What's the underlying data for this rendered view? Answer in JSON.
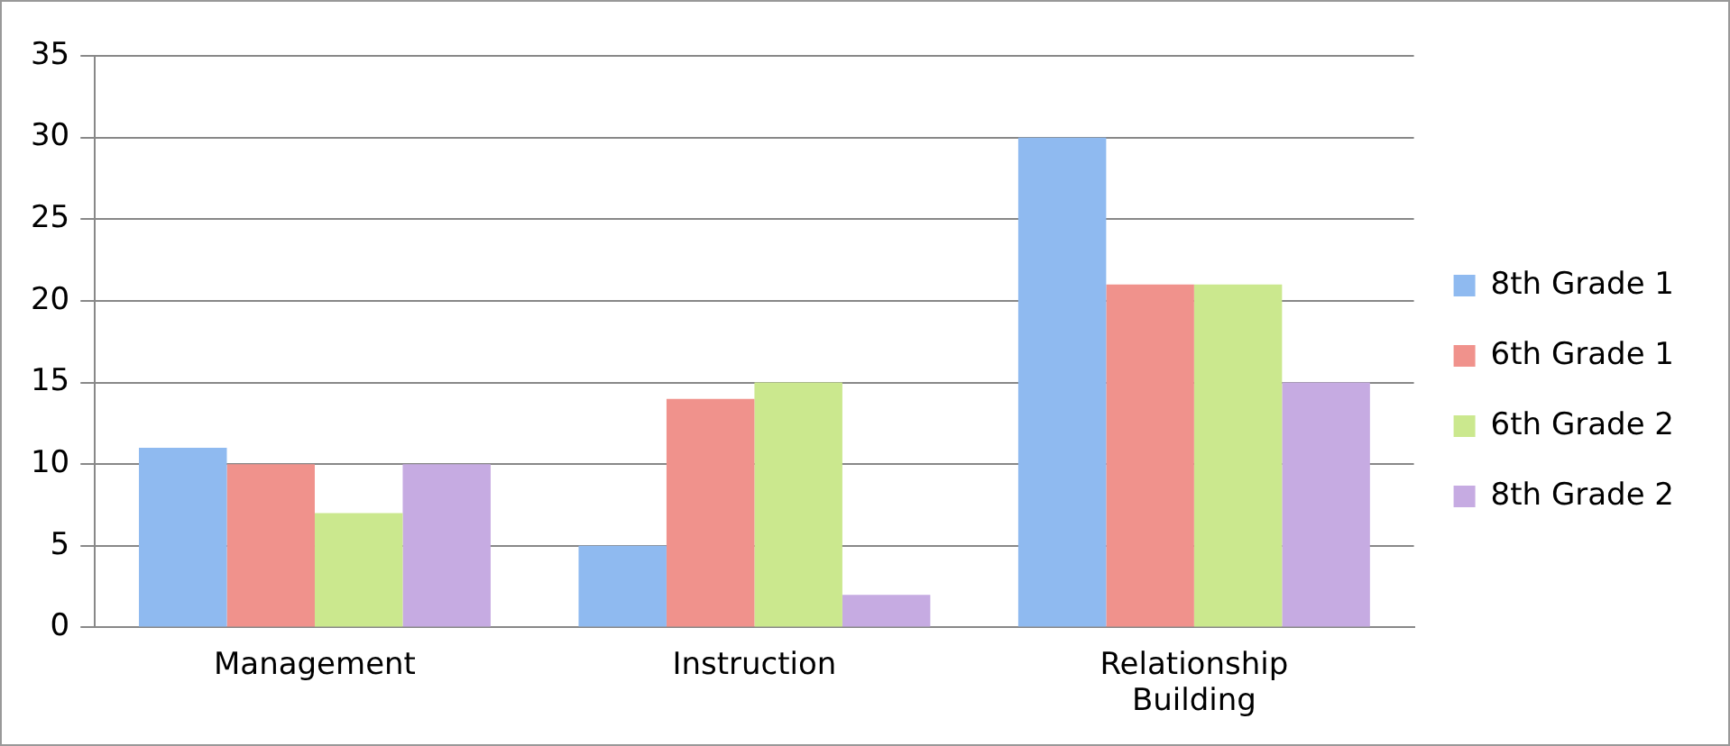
{
  "chart_data": {
    "type": "bar",
    "categories": [
      "Management",
      "Instruction",
      "Relationship Building"
    ],
    "series": [
      {
        "name": "8th Grade 1",
        "color": "#8fbaf0",
        "values": [
          11,
          5,
          30
        ]
      },
      {
        "name": "6th Grade 1",
        "color": "#f0928c",
        "values": [
          10,
          14,
          21
        ]
      },
      {
        "name": "6th Grade 2",
        "color": "#cbe88e",
        "values": [
          7,
          15,
          21
        ]
      },
      {
        "name": "8th Grade 2",
        "color": "#c6abe2",
        "values": [
          10,
          2,
          15
        ]
      }
    ],
    "ylim": [
      0,
      35
    ],
    "yticks": [
      0,
      5,
      10,
      15,
      20,
      25,
      30,
      35
    ],
    "grid": "y",
    "legend": "right"
  }
}
